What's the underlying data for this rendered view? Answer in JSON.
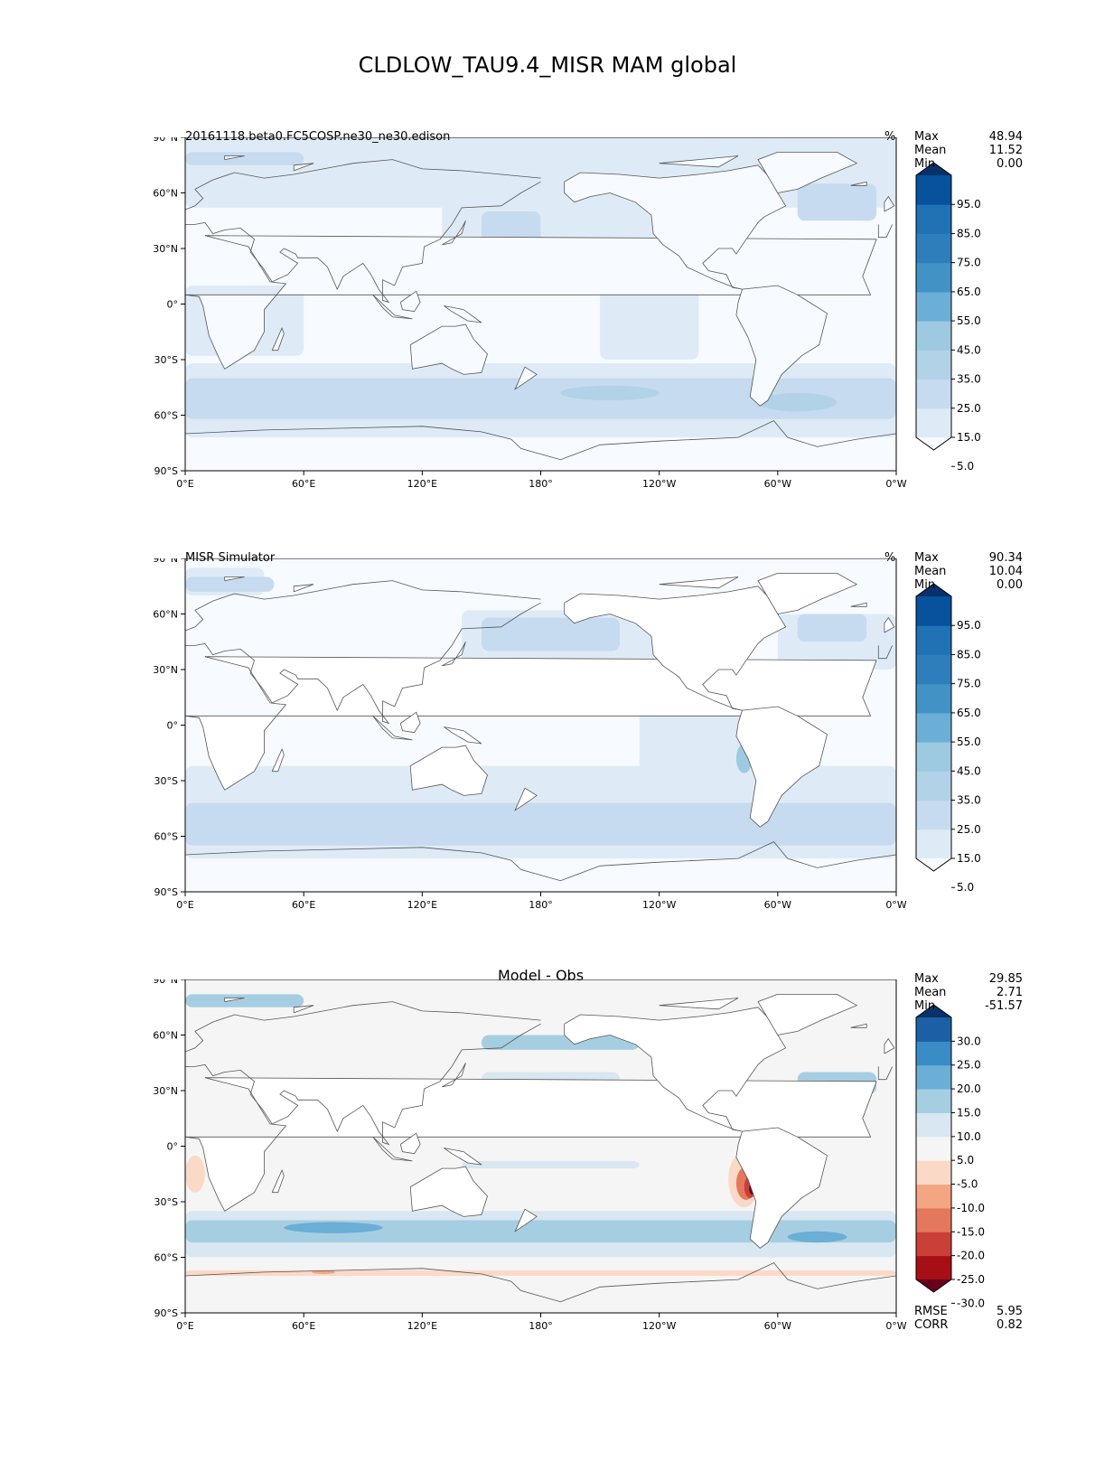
{
  "title": "CLDLOW_TAU9.4_MISR MAM global",
  "x_ticks": [
    "0°E",
    "60°E",
    "120°E",
    "180°",
    "120°W",
    "60°W",
    "0°W"
  ],
  "y_ticks": [
    "90°N",
    "60°N",
    "30°N",
    "0°",
    "30°S",
    "60°S",
    "90°S"
  ],
  "panels": [
    {
      "id": "model",
      "label_left": "20161118.beta0.FC5COSP.ne30_ne30.edison",
      "label_center": "",
      "unit": "%",
      "stats": [
        {
          "name": "Max",
          "value": "48.94"
        },
        {
          "name": "Mean",
          "value": "11.52"
        },
        {
          "name": "Min",
          "value": "0.00"
        }
      ],
      "bottom_stats": [],
      "colorbar": {
        "labels": [
          "95.0",
          "85.0",
          "75.0",
          "65.0",
          "55.0",
          "45.0",
          "35.0",
          "25.0",
          "15.0",
          "5.0"
        ],
        "colors": [
          "#f7fbff",
          "#deebf7",
          "#c6dbef",
          "#b2d2e8",
          "#9ecae1",
          "#6baed6",
          "#4292c6",
          "#2f7ebc",
          "#2171b5",
          "#08519c",
          "#08306b"
        ]
      }
    },
    {
      "id": "obs",
      "label_left": "MISR Simulator",
      "label_center": "",
      "unit": "%",
      "stats": [
        {
          "name": "Max",
          "value": "90.34"
        },
        {
          "name": "Mean",
          "value": "10.04"
        },
        {
          "name": "Min",
          "value": "0.00"
        }
      ],
      "bottom_stats": [],
      "colorbar": {
        "labels": [
          "95.0",
          "85.0",
          "75.0",
          "65.0",
          "55.0",
          "45.0",
          "35.0",
          "25.0",
          "15.0",
          "5.0"
        ],
        "colors": [
          "#f7fbff",
          "#deebf7",
          "#c6dbef",
          "#b2d2e8",
          "#9ecae1",
          "#6baed6",
          "#4292c6",
          "#2f7ebc",
          "#2171b5",
          "#08519c",
          "#08306b"
        ]
      }
    },
    {
      "id": "diff",
      "label_left": "",
      "label_center": "Model - Obs",
      "unit": "",
      "stats": [
        {
          "name": "Max",
          "value": "29.85"
        },
        {
          "name": "Mean",
          "value": "2.71"
        },
        {
          "name": "Min",
          "value": "-51.57"
        }
      ],
      "bottom_stats": [
        {
          "name": "RMSE",
          "value": "5.95"
        },
        {
          "name": "CORR",
          "value": "0.82"
        }
      ],
      "colorbar": {
        "labels": [
          "30.0",
          "25.0",
          "20.0",
          "15.0",
          "10.0",
          "5.0",
          "-5.0",
          "-10.0",
          "-15.0",
          "-20.0",
          "-25.0",
          "-30.0"
        ],
        "colors": [
          "#67001f",
          "#a50f15",
          "#cb3f39",
          "#e4785d",
          "#f4a582",
          "#fbd9c7",
          "#f5f5f5",
          "#d8e7f1",
          "#a6cee3",
          "#6baed6",
          "#3a8cc4",
          "#1d5fa5",
          "#083269"
        ]
      }
    }
  ]
}
